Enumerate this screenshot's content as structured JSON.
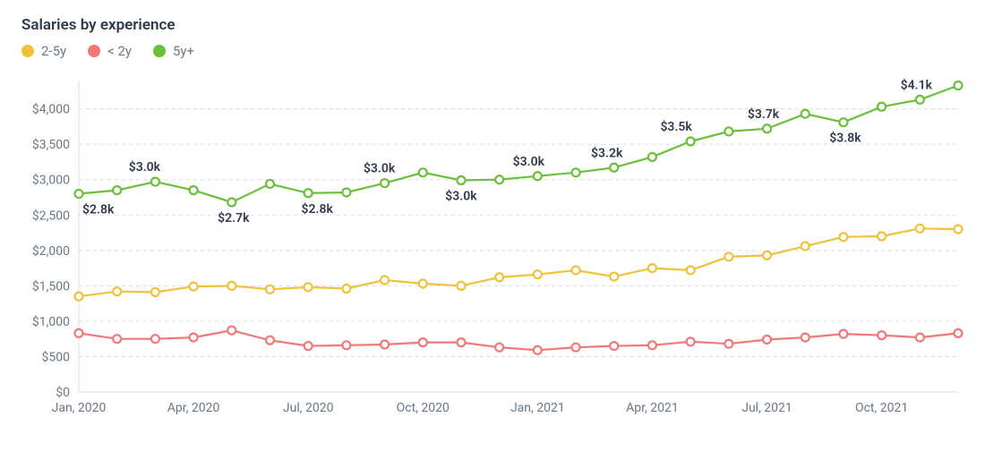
{
  "title": "Salaries by experience",
  "legend": [
    {
      "key": "mid",
      "label": "2-5y",
      "color": "#f0c23b"
    },
    {
      "key": "junior",
      "label": "< 2y",
      "color": "#f27878"
    },
    {
      "key": "senior",
      "label": "5y+",
      "color": "#6bbf3a"
    }
  ],
  "chart": {
    "type": "line",
    "background_color": "#ffffff",
    "grid_color": "#d8dde3",
    "axis_label_color": "#6b7785",
    "data_label_color": "#2e3a4b",
    "title_fontsize": 17,
    "label_fontsize": 14,
    "line_width": 2.2,
    "marker_radius": 4.5,
    "marker_fill": "#ffffff",
    "x": {
      "domain": [
        0,
        23
      ],
      "ticks": [
        {
          "i": 0,
          "label": "Jan, 2020"
        },
        {
          "i": 3,
          "label": "Apr, 2020"
        },
        {
          "i": 6,
          "label": "Jul, 2020"
        },
        {
          "i": 9,
          "label": "Oct, 2020"
        },
        {
          "i": 12,
          "label": "Jan, 2021"
        },
        {
          "i": 15,
          "label": "Apr, 2021"
        },
        {
          "i": 18,
          "label": "Jul, 2021"
        },
        {
          "i": 21,
          "label": "Oct, 2021"
        }
      ]
    },
    "y": {
      "domain": [
        0,
        4400
      ],
      "ticks": [
        {
          "v": 0,
          "label": "$0"
        },
        {
          "v": 500,
          "label": "$500"
        },
        {
          "v": 1000,
          "label": "$1,000"
        },
        {
          "v": 1500,
          "label": "$1,500"
        },
        {
          "v": 2000,
          "label": "$2,000"
        },
        {
          "v": 2500,
          "label": "$2,500"
        },
        {
          "v": 3000,
          "label": "$3,000"
        },
        {
          "v": 3500,
          "label": "$3,500"
        },
        {
          "v": 4000,
          "label": "$4,000"
        }
      ]
    },
    "series": {
      "senior": {
        "color": "#6bbf3a",
        "values": [
          2800,
          2850,
          2970,
          2850,
          2680,
          2940,
          2810,
          2820,
          2950,
          3100,
          2990,
          3000,
          3050,
          3100,
          3170,
          3320,
          3540,
          3680,
          3720,
          3930,
          3810,
          4030,
          4130,
          4330
        ],
        "labels": [
          {
            "i": 0,
            "text": "$2.8k",
            "dx": 4,
            "dy": 22,
            "anchor": "start"
          },
          {
            "i": 2,
            "text": "$3.0k",
            "dx": -12,
            "dy": -12,
            "anchor": "middle"
          },
          {
            "i": 4,
            "text": "$2.7k",
            "dx": 2,
            "dy": 22,
            "anchor": "middle"
          },
          {
            "i": 6,
            "text": "$2.8k",
            "dx": 10,
            "dy": 22,
            "anchor": "middle"
          },
          {
            "i": 8,
            "text": "$3.0k",
            "dx": -6,
            "dy": -12,
            "anchor": "middle"
          },
          {
            "i": 10,
            "text": "$3.0k",
            "dx": 0,
            "dy": 22,
            "anchor": "middle"
          },
          {
            "i": 12,
            "text": "$3.0k",
            "dx": -10,
            "dy": -12,
            "anchor": "middle"
          },
          {
            "i": 14,
            "text": "$3.2k",
            "dx": -8,
            "dy": -12,
            "anchor": "middle"
          },
          {
            "i": 16,
            "text": "$3.5k",
            "dx": -16,
            "dy": -12,
            "anchor": "middle"
          },
          {
            "i": 18,
            "text": "$3.7k",
            "dx": -4,
            "dy": -12,
            "anchor": "middle"
          },
          {
            "i": 20,
            "text": "$3.8k",
            "dx": 2,
            "dy": 22,
            "anchor": "middle"
          },
          {
            "i": 22,
            "text": "$4.1k",
            "dx": -4,
            "dy": -12,
            "anchor": "middle"
          }
        ]
      },
      "mid": {
        "color": "#f0c23b",
        "values": [
          1350,
          1420,
          1410,
          1490,
          1500,
          1450,
          1480,
          1460,
          1580,
          1530,
          1500,
          1620,
          1660,
          1720,
          1630,
          1750,
          1720,
          1910,
          1930,
          2060,
          2190,
          2200,
          2310,
          2300
        ],
        "labels": []
      },
      "junior": {
        "color": "#f27878",
        "values": [
          830,
          750,
          750,
          770,
          870,
          730,
          650,
          660,
          670,
          700,
          700,
          630,
          590,
          630,
          650,
          660,
          710,
          680,
          740,
          770,
          820,
          800,
          770,
          830
        ],
        "labels": []
      }
    },
    "series_order": [
      "junior",
      "mid",
      "senior"
    ]
  }
}
